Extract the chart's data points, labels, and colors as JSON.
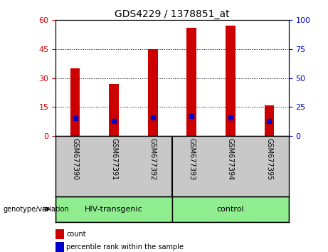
{
  "title": "GDS4229 / 1378851_at",
  "samples": [
    "GSM677390",
    "GSM677391",
    "GSM677392",
    "GSM677393",
    "GSM677394",
    "GSM677395"
  ],
  "count_values": [
    35,
    27,
    45,
    56,
    57,
    16
  ],
  "percentile_values": [
    15.2,
    13.0,
    16.2,
    17.5,
    16.2,
    13.0
  ],
  "left_yticks": [
    0,
    15,
    30,
    45,
    60
  ],
  "right_yticks": [
    0,
    25,
    50,
    75,
    100
  ],
  "left_ylim": [
    0,
    60
  ],
  "right_ylim": [
    0,
    100
  ],
  "bar_color": "#CC0000",
  "dot_color": "#0000CC",
  "left_tick_color": "#CC0000",
  "right_tick_color": "#0000CC",
  "bg_color": "#C8C8C8",
  "green_color": "#90EE90",
  "plot_bg_color": "#FFFFFF",
  "title_fontsize": 10,
  "tick_fontsize": 8,
  "sample_fontsize": 7,
  "group_fontsize": 8,
  "legend_fontsize": 7,
  "genotype_label": "genotype/variation",
  "group_labels": [
    "HIV-transgenic",
    "control"
  ],
  "group_ranges": [
    [
      0,
      2
    ],
    [
      3,
      5
    ]
  ],
  "legend_count_label": "count",
  "legend_percentile_label": "percentile rank within the sample",
  "bar_width": 0.25
}
